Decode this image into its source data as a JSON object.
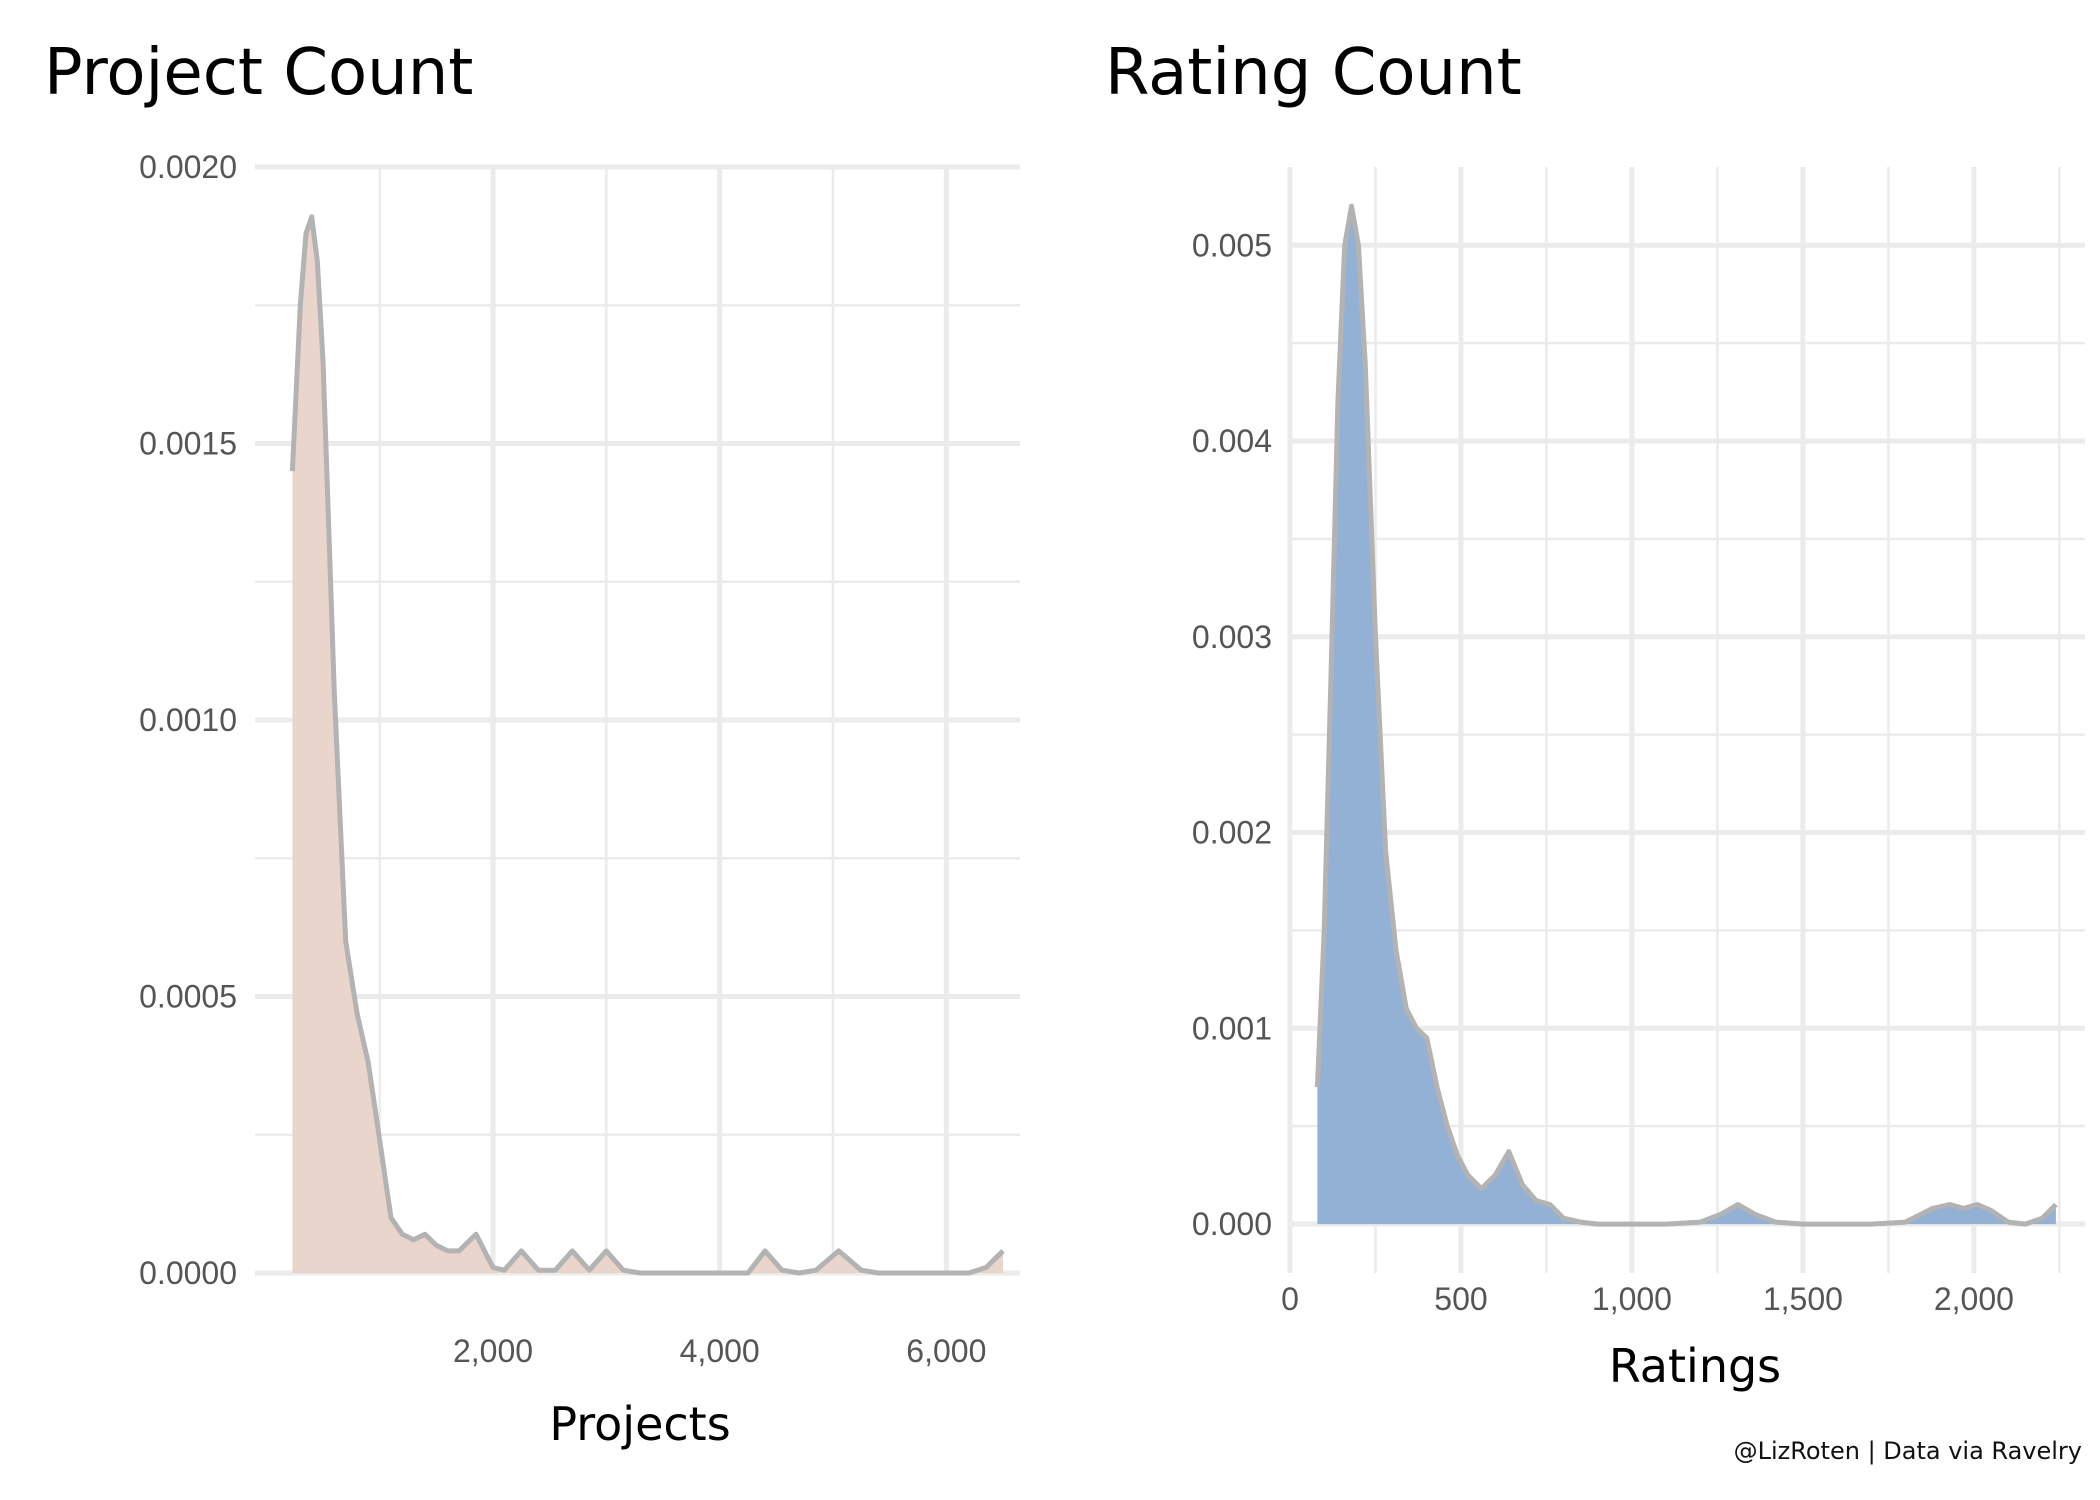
{
  "caption": "@LizRoten | Data via Ravelry",
  "chart_data": [
    {
      "type": "area",
      "title": "Project Count",
      "xlabel": "Projects",
      "ylabel": "",
      "xlim": [
        -100,
        6650
      ],
      "ylim": [
        0,
        0.002
      ],
      "xticks": [
        2000,
        4000,
        6000
      ],
      "xtick_labels": [
        "2,000",
        "4,000",
        "6,000"
      ],
      "yticks": [
        0,
        0.0005,
        0.001,
        0.0015,
        0.002
      ],
      "ytick_labels": [
        "0.0000",
        "0.0005",
        "0.0010",
        "0.0015",
        "0.0020"
      ],
      "xminor": [
        1000,
        3000,
        5000
      ],
      "yminor": [
        0.00025,
        0.00075,
        0.00125,
        0.00175
      ],
      "grid": true,
      "fill_color": "#e9d5cb",
      "line_color": "#b3b3b3",
      "series": [
        {
          "x": [
            230,
            300,
            350,
            400,
            450,
            500,
            550,
            600,
            700,
            800,
            900,
            1000,
            1100,
            1200,
            1300,
            1400,
            1500,
            1600,
            1700,
            1850,
            2000,
            2100,
            2250,
            2400,
            2550,
            2700,
            2850,
            3000,
            3150,
            3300,
            3500,
            3800,
            4100,
            4250,
            4400,
            4550,
            4700,
            4850,
            5050,
            5250,
            5400,
            5600,
            5900,
            6200,
            6350,
            6500
          ],
          "y": [
            0.00145,
            0.00175,
            0.00188,
            0.00191,
            0.00183,
            0.00165,
            0.00135,
            0.00105,
            0.0006,
            0.00047,
            0.00038,
            0.00024,
            0.0001,
            7e-05,
            6e-05,
            7e-05,
            5e-05,
            4e-05,
            4e-05,
            7e-05,
            1e-05,
            5e-06,
            4e-05,
            5e-06,
            5e-06,
            4e-05,
            5e-06,
            4e-05,
            5e-06,
            0.0,
            0.0,
            0.0,
            0.0,
            0.0,
            4e-05,
            5e-06,
            0.0,
            5e-06,
            4e-05,
            5e-06,
            0.0,
            0.0,
            0.0,
            0.0,
            1e-05,
            4e-05
          ]
        }
      ]
    },
    {
      "type": "area",
      "title": "Rating Count",
      "xlabel": "Ratings",
      "ylabel": "",
      "xlim": [
        0,
        2325
      ],
      "ylim": [
        -0.00025,
        0.0054
      ],
      "xticks": [
        0,
        500,
        1000,
        1500,
        2000
      ],
      "xtick_labels": [
        "0",
        "500",
        "1,000",
        "1,500",
        "2,000"
      ],
      "yticks": [
        0,
        0.001,
        0.002,
        0.003,
        0.004,
        0.005
      ],
      "ytick_labels": [
        "0.000",
        "0.001",
        "0.002",
        "0.003",
        "0.004",
        "0.005"
      ],
      "xminor": [
        250,
        750,
        1250,
        1750,
        2250
      ],
      "yminor": [
        0.0005,
        0.0015,
        0.0025,
        0.0035,
        0.0045
      ],
      "grid": true,
      "fill_color": "#93b0d5",
      "line_color": "#b3b3b3",
      "series": [
        {
          "x": [
            80,
            100,
            120,
            140,
            160,
            180,
            200,
            220,
            250,
            280,
            310,
            340,
            370,
            400,
            430,
            460,
            490,
            520,
            560,
            600,
            640,
            680,
            720,
            760,
            800,
            850,
            900,
            1000,
            1100,
            1200,
            1260,
            1310,
            1360,
            1420,
            1500,
            1600,
            1700,
            1800,
            1880,
            1930,
            1970,
            2010,
            2050,
            2100,
            2150,
            2200,
            2240
          ],
          "y": [
            0.0007,
            0.0015,
            0.0028,
            0.0042,
            0.005,
            0.0052,
            0.005,
            0.0044,
            0.003,
            0.0019,
            0.0014,
            0.0011,
            0.001,
            0.00095,
            0.0007,
            0.0005,
            0.00035,
            0.00025,
            0.00018,
            0.00025,
            0.00037,
            0.0002,
            0.00012,
            0.0001,
            3e-05,
            1e-05,
            0.0,
            0.0,
            0.0,
            1e-05,
            5e-05,
            0.0001,
            5e-05,
            1e-05,
            0.0,
            0.0,
            0.0,
            1e-05,
            8e-05,
            0.0001,
            8e-05,
            0.0001,
            7e-05,
            1e-05,
            0.0,
            3e-05,
            0.0001
          ]
        }
      ]
    }
  ]
}
